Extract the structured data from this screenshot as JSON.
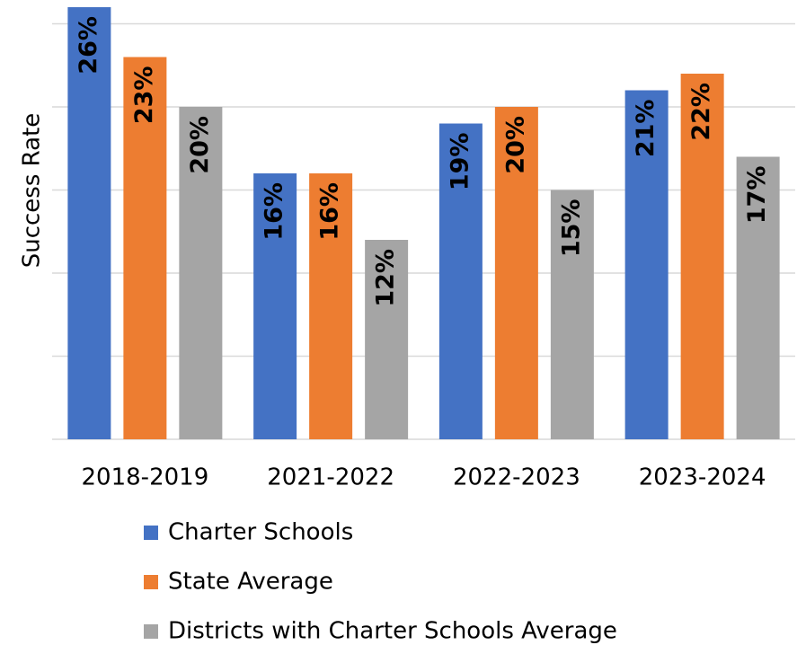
{
  "chart_data": {
    "type": "bar",
    "y_label": "Success Rate",
    "categories": [
      "2018-2019",
      "2021-2022",
      "2022-2023",
      "2023-2024"
    ],
    "series": [
      {
        "name": "Charter Schools",
        "color": "#4472c4",
        "values": [
          26,
          16,
          19,
          21
        ],
        "value_labels": [
          "26%",
          "16%",
          "19%",
          "21%"
        ]
      },
      {
        "name": "State Average",
        "color": "#ed7d31",
        "values": [
          23,
          16,
          20,
          22
        ],
        "value_labels": [
          "23%",
          "16%",
          "20%",
          "22%"
        ]
      },
      {
        "name": "Districts with Charter Schools Average",
        "color": "#a5a5a5",
        "values": [
          20,
          12,
          15,
          17
        ],
        "value_labels": [
          "20%",
          "12%",
          "15%",
          "17%"
        ]
      }
    ],
    "ylim": [
      0,
      26
    ],
    "yticks": [
      0,
      5,
      10,
      15,
      20,
      25
    ],
    "grid": true,
    "legend": "bottom"
  }
}
